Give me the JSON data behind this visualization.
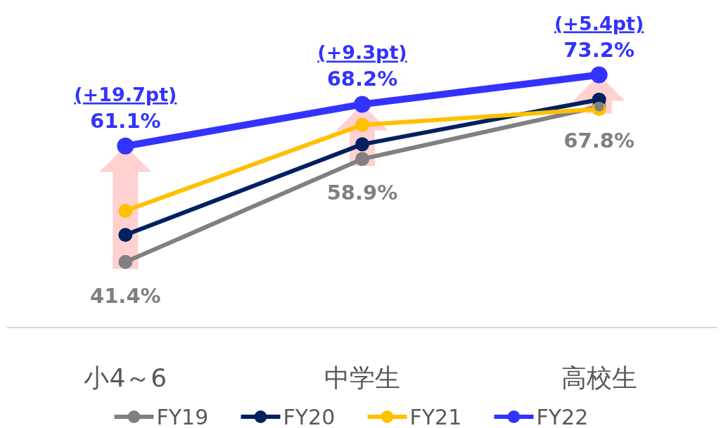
{
  "chart_data": {
    "type": "line",
    "categories": [
      "小4～6",
      "中学生",
      "高校生"
    ],
    "series": [
      {
        "name": "FY19",
        "color": "#808080",
        "values": [
          41.4,
          58.9,
          67.8
        ],
        "value_labels": [
          "41.4%",
          "58.9%",
          "67.8%"
        ]
      },
      {
        "name": "FY20",
        "color": "#002060",
        "values": [
          46.0,
          61.4,
          69.0
        ]
      },
      {
        "name": "FY21",
        "color": "#ffc000",
        "values": [
          50.1,
          64.7,
          67.4
        ]
      },
      {
        "name": "FY22",
        "color": "#3333ff",
        "values": [
          61.1,
          68.2,
          73.2
        ],
        "value_labels": [
          "61.1%",
          "68.2%",
          "73.2%"
        ]
      }
    ],
    "annotations": [
      {
        "text": "(+19.7pt)",
        "x": "小4～6",
        "y": 61.1
      },
      {
        "text": "(+9.3pt)",
        "x": "中学生",
        "y": 68.2
      },
      {
        "text": "(+5.4pt)",
        "x": "高校生",
        "y": 73.2
      }
    ],
    "tick_labels": "x",
    "legend": "bottom",
    "marker": "circle",
    "line_style": "solid"
  }
}
